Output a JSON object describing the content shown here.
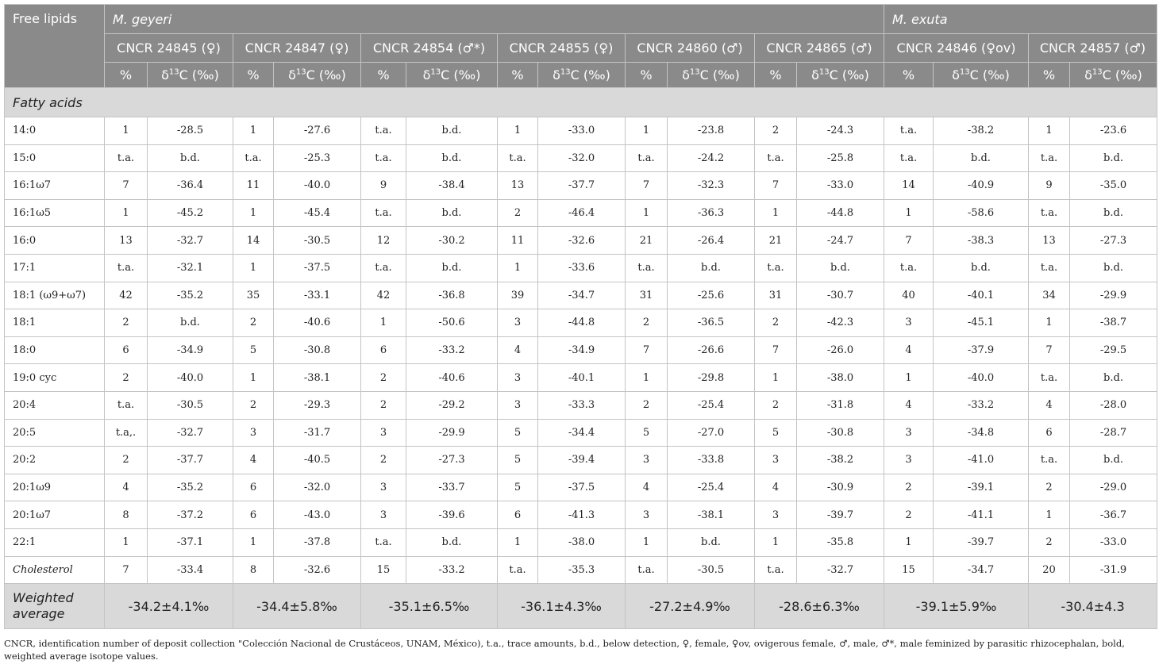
{
  "header": {
    "free_lipids": "Free lipids",
    "species": [
      "M. geyeri",
      "M. exuta"
    ],
    "specimens": [
      "CNCR 24845 (♀)",
      "CNCR 24847 (♀)",
      "CNCR 24854 (♂*)",
      "CNCR 24855 (♀)",
      "CNCR 24860 (♂)",
      "CNCR 24865 (♂)",
      "CNCR 24846 (♀ov)",
      "CNCR 24857 (♂)"
    ],
    "pct": "%",
    "delta_pre": "δ",
    "delta_sup": "13",
    "delta_post": "C (‰)"
  },
  "section": "Fatty acids",
  "rows": [
    {
      "label": "14:0",
      "italic": false,
      "v": [
        "1",
        "-28.5",
        "1",
        "-27.6",
        "t.a.",
        "b.d.",
        "1",
        "-33.0",
        "1",
        "-23.8",
        "2",
        "-24.3",
        "t.a.",
        "-38.2",
        "1",
        "-23.6"
      ]
    },
    {
      "label": "15:0",
      "italic": false,
      "v": [
        "t.a.",
        "b.d.",
        "t.a.",
        "-25.3",
        "t.a.",
        "b.d.",
        "t.a.",
        "-32.0",
        "t.a.",
        "-24.2",
        "t.a.",
        "-25.8",
        "t.a.",
        "b.d.",
        "t.a.",
        "b.d."
      ]
    },
    {
      "label": "16:1ω7",
      "italic": false,
      "v": [
        "7",
        "-36.4",
        "11",
        "-40.0",
        "9",
        "-38.4",
        "13",
        "-37.7",
        "7",
        "-32.3",
        "7",
        "-33.0",
        "14",
        "-40.9",
        "9",
        "-35.0"
      ]
    },
    {
      "label": "16:1ω5",
      "italic": false,
      "v": [
        "1",
        "-45.2",
        "1",
        "-45.4",
        "t.a.",
        "b.d.",
        "2",
        "-46.4",
        "1",
        "-36.3",
        "1",
        "-44.8",
        "1",
        "-58.6",
        "t.a.",
        "b.d."
      ]
    },
    {
      "label": "16:0",
      "italic": false,
      "v": [
        "13",
        "-32.7",
        "14",
        "-30.5",
        "12",
        "-30.2",
        "11",
        "-32.6",
        "21",
        "-26.4",
        "21",
        "-24.7",
        "7",
        "-38.3",
        "13",
        "-27.3"
      ]
    },
    {
      "label": "17:1",
      "italic": false,
      "v": [
        "t.a.",
        "-32.1",
        "1",
        "-37.5",
        "t.a.",
        "b.d.",
        "1",
        "-33.6",
        "t.a.",
        "b.d.",
        "t.a.",
        "b.d.",
        "t.a.",
        "b.d.",
        "t.a.",
        "b.d."
      ]
    },
    {
      "label": "18:1 (ω9+ω7)",
      "italic": false,
      "v": [
        "42",
        "-35.2",
        "35",
        "-33.1",
        "42",
        "-36.8",
        "39",
        "-34.7",
        "31",
        "-25.6",
        "31",
        "-30.7",
        "40",
        "-40.1",
        "34",
        "-29.9"
      ]
    },
    {
      "label": "18:1",
      "italic": false,
      "v": [
        "2",
        "b.d.",
        "2",
        "-40.6",
        "1",
        "-50.6",
        "3",
        "-44.8",
        "2",
        "-36.5",
        "2",
        "-42.3",
        "3",
        "-45.1",
        "1",
        "-38.7"
      ]
    },
    {
      "label": "18:0",
      "italic": false,
      "v": [
        "6",
        "-34.9",
        "5",
        "-30.8",
        "6",
        "-33.2",
        "4",
        "-34.9",
        "7",
        "-26.6",
        "7",
        "-26.0",
        "4",
        "-37.9",
        "7",
        "-29.5"
      ]
    },
    {
      "label": "19:0 cyc",
      "italic": false,
      "v": [
        "2",
        "-40.0",
        "1",
        "-38.1",
        "2",
        "-40.6",
        "3",
        "-40.1",
        "1",
        "-29.8",
        "1",
        "-38.0",
        "1",
        "-40.0",
        "t.a.",
        "b.d."
      ]
    },
    {
      "label": "20:4",
      "italic": false,
      "v": [
        "t.a.",
        "-30.5",
        "2",
        "-29.3",
        "2",
        "-29.2",
        "3",
        "-33.3",
        "2",
        "-25.4",
        "2",
        "-31.8",
        "4",
        "-33.2",
        "4",
        "-28.0"
      ]
    },
    {
      "label": "20:5",
      "italic": false,
      "v": [
        "t.a,.",
        "-32.7",
        "3",
        "-31.7",
        "3",
        "-29.9",
        "5",
        "-34.4",
        "5",
        "-27.0",
        "5",
        "-30.8",
        "3",
        "-34.8",
        "6",
        "-28.7"
      ]
    },
    {
      "label": "20:2",
      "italic": false,
      "v": [
        "2",
        "-37.7",
        "4",
        "-40.5",
        "2",
        "-27.3",
        "5",
        "-39.4",
        "3",
        "-33.8",
        "3",
        "-38.2",
        "3",
        "-41.0",
        "t.a.",
        "b.d."
      ]
    },
    {
      "label": "20:1ω9",
      "italic": false,
      "v": [
        "4",
        "-35.2",
        "6",
        "-32.0",
        "3",
        "-33.7",
        "5",
        "-37.5",
        "4",
        "-25.4",
        "4",
        "-30.9",
        "2",
        "-39.1",
        "2",
        "-29.0"
      ]
    },
    {
      "label": "20:1ω7",
      "italic": false,
      "v": [
        "8",
        "-37.2",
        "6",
        "-43.0",
        "3",
        "-39.6",
        "6",
        "-41.3",
        "3",
        "-38.1",
        "3",
        "-39.7",
        "2",
        "-41.1",
        "1",
        "-36.7"
      ]
    },
    {
      "label": "22:1",
      "italic": false,
      "v": [
        "1",
        "-37.1",
        "1",
        "-37.8",
        "t.a.",
        "b.d.",
        "1",
        "-38.0",
        "1",
        "b.d.",
        "1",
        "-35.8",
        "1",
        "-39.7",
        "2",
        "-33.0"
      ]
    },
    {
      "label": "Cholesterol",
      "italic": true,
      "v": [
        "7",
        "-33.4",
        "8",
        "-32.6",
        "15",
        "-33.2",
        "t.a.",
        "-35.3",
        "t.a.",
        "-30.5",
        "t.a.",
        "-32.7",
        "15",
        "-34.7",
        "20",
        "-31.9"
      ]
    }
  ],
  "weighted": {
    "label_line1": "Weighted",
    "label_line2": "average",
    "values": [
      "-34.2±4.1‰",
      "-34.4±5.8‰",
      "-35.1±6.5‰",
      "-36.1±4.3‰",
      "-27.2±4.9‰",
      "-28.6±6.3‰",
      "-39.1±5.9‰",
      "-30.4±4.3"
    ]
  },
  "footnote": "CNCR, identification number of deposit collection \"Colección Nacional de Crustáceos, UNAM, México), t.a., trace amounts, b.d., below detection, ♀, female, ♀ov, ovigerous female, ♂, male, ♂*, male feminized by parasitic rhizocephalan, bold, weighted average isotope values."
}
